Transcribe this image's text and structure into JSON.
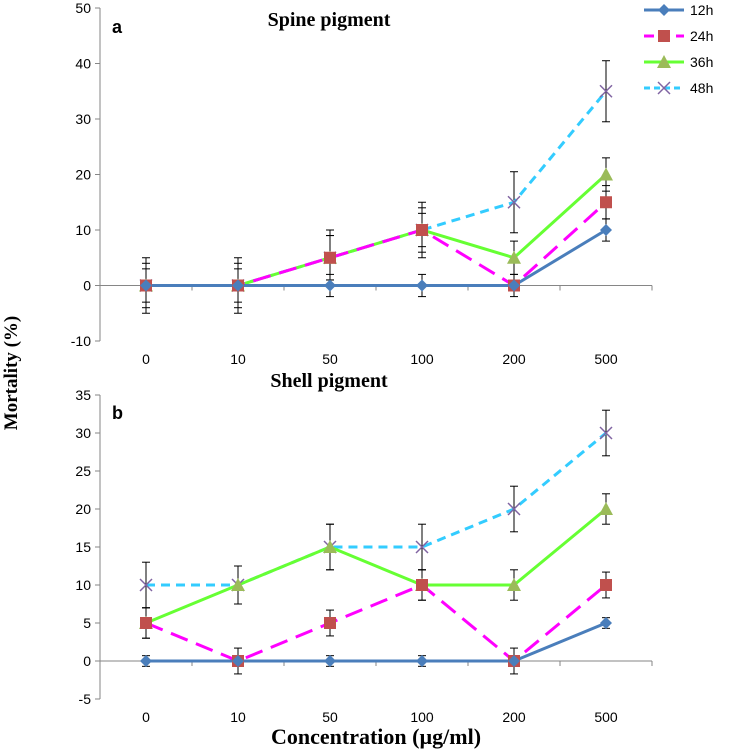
{
  "figure": {
    "ylabel": "Mortality (%)",
    "xlabel": "Concentration (µg/ml)"
  },
  "legend": [
    {
      "name": "12h",
      "color": "#4a7ebb",
      "marker": "diamond",
      "dash": "solid"
    },
    {
      "name": "24h",
      "color": "#ff00ff",
      "marker": "square",
      "dash": "long-dash",
      "marker_color": "#c0504d"
    },
    {
      "name": "36h",
      "color": "#66ff33",
      "marker": "triangle",
      "dash": "solid",
      "marker_color": "#9bbb59"
    },
    {
      "name": "48h",
      "color": "#33ccff",
      "marker": "x",
      "dash": "dash",
      "marker_color": "#8064a2"
    }
  ],
  "chart_data": [
    {
      "type": "line",
      "panel": "a",
      "title": "Spine pigment",
      "categories": [
        "0",
        "10",
        "50",
        "100",
        "200",
        "500"
      ],
      "ylim": [
        -10,
        50
      ],
      "yticks": [
        -10,
        0,
        10,
        20,
        30,
        40,
        50
      ],
      "grid": false,
      "series": [
        {
          "name": "12h",
          "values": [
            0,
            0,
            0,
            0,
            0,
            10
          ],
          "error": [
            0,
            0,
            2,
            2,
            0,
            2
          ]
        },
        {
          "name": "24h",
          "values": [
            0,
            0,
            5,
            10,
            0,
            15
          ],
          "error": [
            3,
            3,
            4,
            4,
            2,
            3
          ]
        },
        {
          "name": "36h",
          "values": [
            0,
            0,
            5,
            10,
            5,
            20
          ],
          "error": [
            4,
            4,
            4,
            3,
            3,
            3
          ]
        },
        {
          "name": "48h",
          "values": [
            0,
            0,
            5,
            10,
            15,
            35
          ],
          "error": [
            5,
            5,
            5,
            5,
            5.5,
            5.5
          ]
        }
      ]
    },
    {
      "type": "line",
      "panel": "b",
      "title": "Shell pigment",
      "categories": [
        "0",
        "10",
        "50",
        "100",
        "200",
        "500"
      ],
      "ylim": [
        -5,
        35
      ],
      "yticks": [
        -5,
        0,
        5,
        10,
        15,
        20,
        25,
        30,
        35
      ],
      "grid": false,
      "series": [
        {
          "name": "12h",
          "values": [
            0,
            0,
            0,
            0,
            0,
            5
          ],
          "error": [
            0.7,
            0,
            0.7,
            0.7,
            0,
            0.7
          ]
        },
        {
          "name": "24h",
          "values": [
            5,
            0,
            5,
            10,
            0,
            10
          ],
          "error": [
            2,
            1.7,
            1.7,
            2,
            1.7,
            1.7
          ]
        },
        {
          "name": "36h",
          "values": [
            5,
            10,
            15,
            10,
            10,
            20
          ],
          "error": [
            2,
            2.5,
            3,
            2,
            2,
            2
          ]
        },
        {
          "name": "48h",
          "values": [
            10,
            10,
            15,
            15,
            20,
            30
          ],
          "error": [
            3,
            2.5,
            3,
            3,
            3,
            3
          ]
        }
      ]
    }
  ]
}
